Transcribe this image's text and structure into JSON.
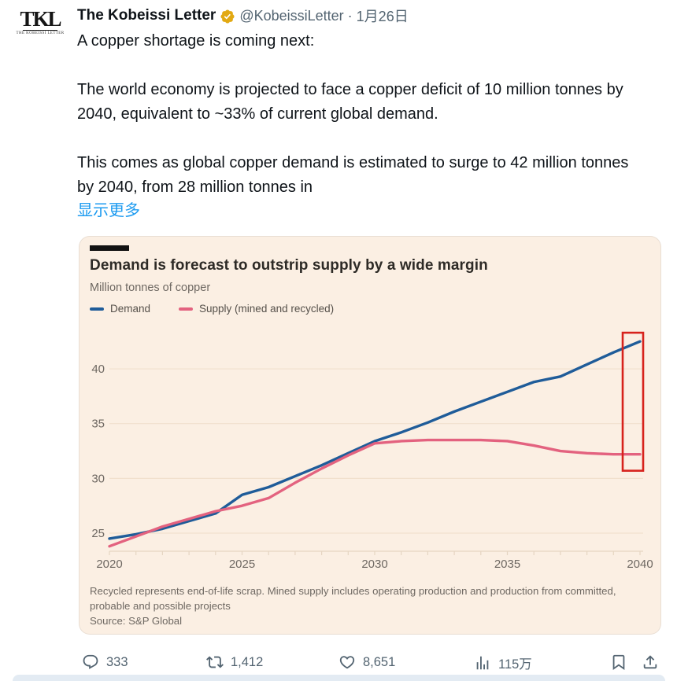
{
  "tweet": {
    "author": "The Kobeissi Letter",
    "badge_color": "#E2A912",
    "handle": "@KobeissiLetter",
    "separator": "·",
    "date": "1月26日",
    "avatar_logo": "TKL",
    "avatar_sub": "THE KOBEISSI LETTER",
    "body": "A copper shortage is coming next:\n\nThe world economy is projected to face a copper deficit of 10 million tonnes by 2040, equivalent to ~33% of current global demand.\n\nThis comes as global copper demand is estimated to surge to 42 million tonnes by 2040, from 28 million tonnes in",
    "show_more": "显示更多",
    "link_color": "#1d9bf0"
  },
  "actions": {
    "reply_count": "333",
    "repost_count": "1,412",
    "like_count": "8,651",
    "view_count": "115万",
    "icon_color": "#536471"
  },
  "chart_data": {
    "type": "line",
    "title": "Demand is forecast to outstrip supply by a wide margin",
    "subtitle": "Million tonnes of copper",
    "background": "#fbefe3",
    "legend_position": "top",
    "grid": "horizontal-faint",
    "x": [
      2020,
      2021,
      2022,
      2023,
      2024,
      2025,
      2026,
      2027,
      2028,
      2029,
      2030,
      2031,
      2032,
      2033,
      2034,
      2035,
      2036,
      2037,
      2038,
      2039,
      2040
    ],
    "series": [
      {
        "name": "Demand",
        "color": "#1f5c99",
        "values": [
          24.5,
          24.9,
          25.4,
          26.1,
          26.8,
          28.5,
          29.2,
          30.2,
          31.2,
          32.3,
          33.4,
          34.2,
          35.1,
          36.1,
          37.0,
          37.9,
          38.8,
          39.3,
          40.4,
          41.5,
          42.5
        ]
      },
      {
        "name": "Supply (mined and recycled)",
        "color": "#e3627f",
        "values": [
          23.8,
          24.7,
          25.6,
          26.3,
          27.0,
          27.5,
          28.2,
          29.6,
          30.9,
          32.1,
          33.2,
          33.4,
          33.5,
          33.5,
          33.5,
          33.4,
          33.0,
          32.5,
          32.3,
          32.2,
          32.2
        ]
      }
    ],
    "ylim": [
      23.4,
      44.3
    ],
    "yticks": [
      25,
      30,
      35,
      40
    ],
    "xticks_labeled": [
      2020,
      2025,
      2030,
      2035,
      2040
    ],
    "annotation_rect": {
      "x_year": 2040,
      "y_from": 30.7,
      "y_to": 43.3,
      "color": "#d7221c",
      "meaning": "highlight of 2040 supply-demand gap"
    },
    "footnote": "Recycled represents end-of-life scrap. Mined supply includes operating production and production from committed, probable and possible projects",
    "source": "Source: S&P Global"
  }
}
